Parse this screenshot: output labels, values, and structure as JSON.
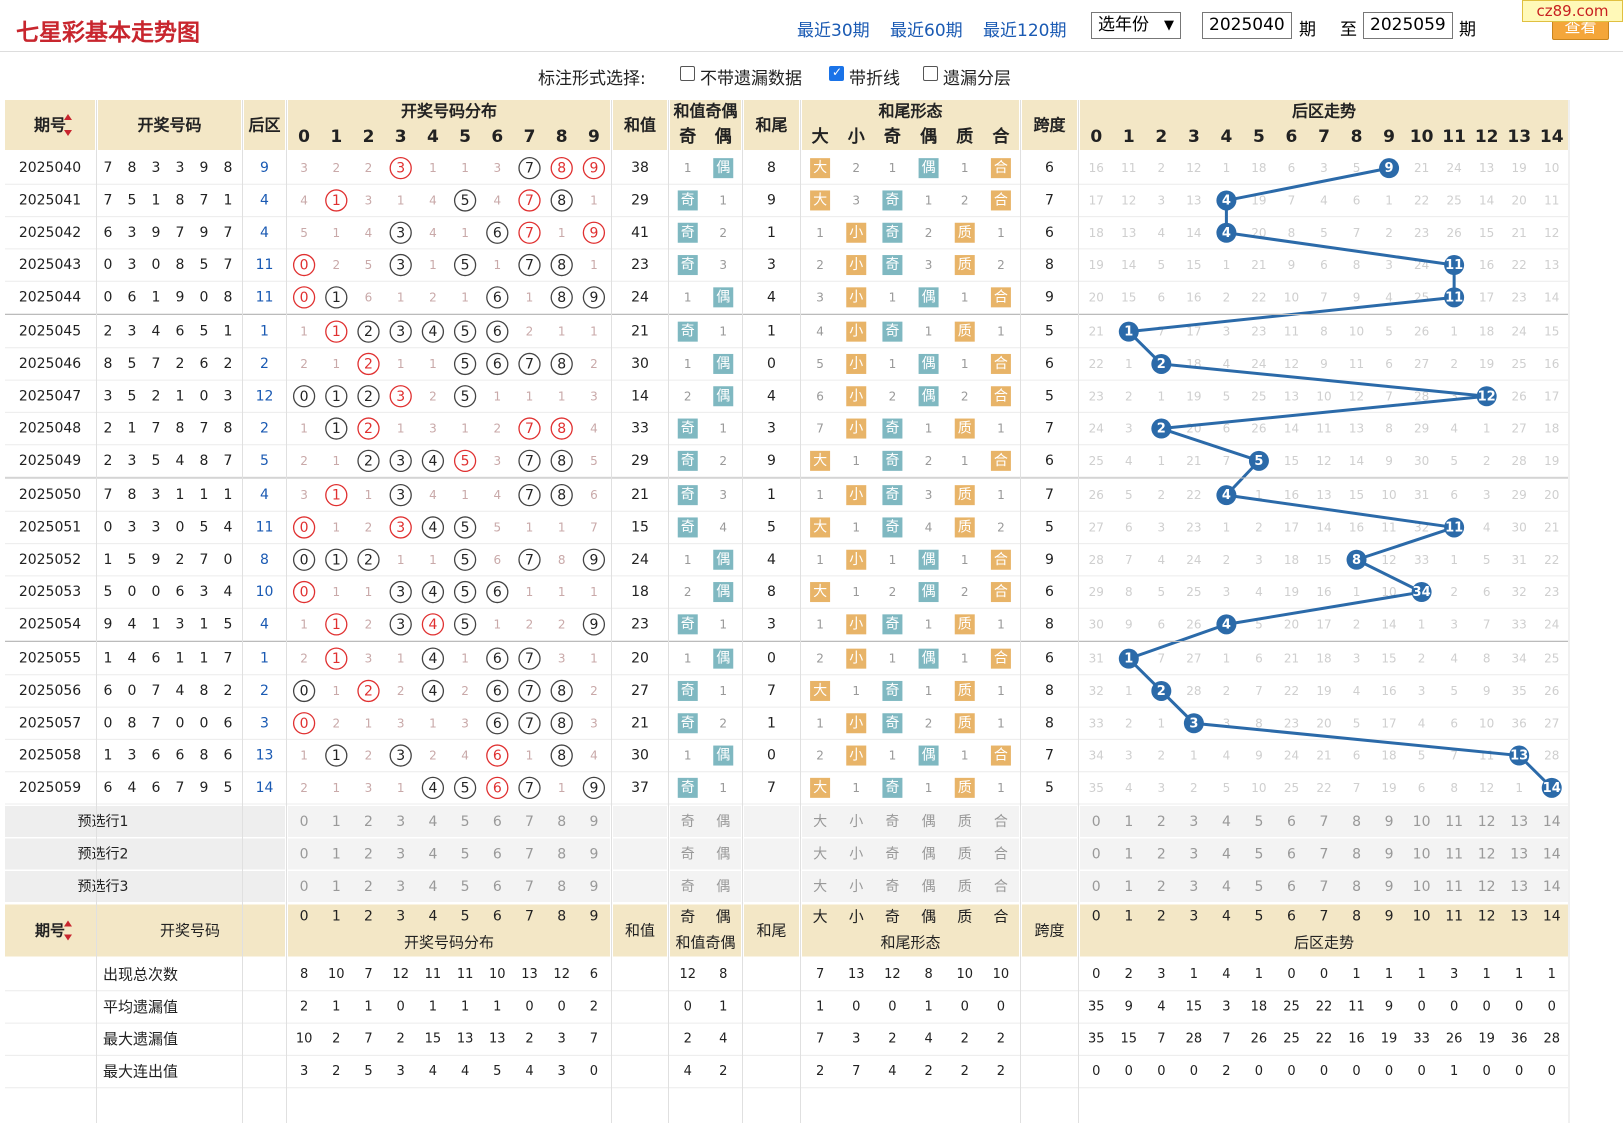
{
  "header": {
    "title": "七星彩基本走势图",
    "nav": [
      "最近30期",
      "最近60期",
      "最近120期"
    ],
    "year_select": "选年份",
    "period_from": "2025040",
    "period_label": "期",
    "to_label": "至",
    "period_to": "2025059",
    "period_label2": "期",
    "query_btn": "查看",
    "watermark": "cz89.com"
  },
  "options": {
    "label": "标注形式选择:",
    "items": [
      {
        "label": "不带遗漏数据",
        "checked": false
      },
      {
        "label": "带折线",
        "checked": true
      },
      {
        "label": "遗漏分层",
        "checked": false
      }
    ]
  },
  "table_headers": {
    "period": "期号",
    "numbers": "开奖号码",
    "back": "后区",
    "dist": "开奖号码分布",
    "sum": "和值",
    "sum_parity": "和值奇偶",
    "tail": "和尾",
    "tail_form": "和尾形态",
    "span": "跨度",
    "back_trend": "后区走势",
    "odd": "奇",
    "even": "偶",
    "form_labels": [
      "大",
      "小",
      "奇",
      "偶",
      "质",
      "合"
    ]
  },
  "rows": [
    {
      "period": "2025040",
      "nums": [
        7,
        8,
        3,
        3,
        9,
        8
      ],
      "back": 9,
      "dist": [
        "3",
        "2",
        "2",
        "3*",
        "1",
        "1",
        "3",
        "7",
        "8*",
        "9*"
      ],
      "sum": 38,
      "parity": [
        "1",
        "偶"
      ],
      "tail": 8,
      "form": [
        "大",
        "2",
        "1",
        "偶",
        "1",
        "合"
      ],
      "span": 6,
      "trend": [
        "16",
        "11",
        "2",
        "12",
        "1",
        "18",
        "6",
        "3",
        "5",
        "9",
        "21",
        "24",
        "13",
        "19",
        "10"
      ]
    },
    {
      "period": "2025041",
      "nums": [
        7,
        5,
        1,
        8,
        7,
        1
      ],
      "back": 4,
      "dist": [
        "4",
        "1*",
        "3",
        "1",
        "4",
        "5",
        "4",
        "7*",
        "8",
        "1"
      ],
      "sum": 29,
      "parity": [
        "奇",
        "1"
      ],
      "tail": 9,
      "form": [
        "大",
        "3",
        "奇",
        "1",
        "2",
        "合"
      ],
      "span": 7,
      "trend": [
        "17",
        "12",
        "3",
        "13",
        "4",
        "19",
        "7",
        "4",
        "6",
        "1",
        "22",
        "25",
        "14",
        "20",
        "11"
      ]
    },
    {
      "period": "2025042",
      "nums": [
        6,
        3,
        9,
        7,
        9,
        7
      ],
      "back": 4,
      "dist": [
        "5",
        "1",
        "4",
        "3",
        "4",
        "1",
        "6",
        "7*",
        "1",
        "9*"
      ],
      "sum": 41,
      "parity": [
        "奇",
        "2"
      ],
      "tail": 1,
      "form": [
        "1",
        "小",
        "奇",
        "2",
        "质",
        "1"
      ],
      "span": 6,
      "trend": [
        "18",
        "13",
        "4",
        "14",
        "4",
        "20",
        "8",
        "5",
        "7",
        "2",
        "23",
        "26",
        "15",
        "21",
        "12"
      ]
    },
    {
      "period": "2025043",
      "nums": [
        0,
        3,
        0,
        8,
        5,
        7
      ],
      "back": 11,
      "dist": [
        "0*",
        "2",
        "5",
        "3",
        "1",
        "5",
        "1",
        "7",
        "8",
        "1"
      ],
      "sum": 23,
      "parity": [
        "奇",
        "3"
      ],
      "tail": 3,
      "form": [
        "2",
        "小",
        "奇",
        "3",
        "质",
        "2"
      ],
      "span": 8,
      "trend": [
        "19",
        "14",
        "5",
        "15",
        "1",
        "21",
        "9",
        "6",
        "8",
        "3",
        "24",
        "11",
        "16",
        "22",
        "13"
      ]
    },
    {
      "period": "2025044",
      "nums": [
        0,
        6,
        1,
        9,
        0,
        8
      ],
      "back": 11,
      "dist": [
        "0*",
        "1",
        "6",
        "1",
        "2",
        "1",
        "6",
        "1",
        "8",
        "9"
      ],
      "sum": 24,
      "parity": [
        "1",
        "偶"
      ],
      "tail": 4,
      "form": [
        "3",
        "小",
        "1",
        "偶",
        "1",
        "合"
      ],
      "span": 9,
      "trend": [
        "20",
        "15",
        "6",
        "16",
        "2",
        "22",
        "10",
        "7",
        "9",
        "4",
        "25",
        "11",
        "17",
        "23",
        "14"
      ]
    },
    {
      "period": "2025045",
      "nums": [
        2,
        3,
        4,
        6,
        5,
        1
      ],
      "back": 1,
      "dist": [
        "1",
        "1*",
        "2",
        "3",
        "4",
        "5",
        "6",
        "2",
        "1",
        "1"
      ],
      "sum": 21,
      "parity": [
        "奇",
        "1"
      ],
      "tail": 1,
      "form": [
        "4",
        "小",
        "奇",
        "1",
        "质",
        "1"
      ],
      "span": 5,
      "trend": [
        "21",
        "1",
        "7",
        "17",
        "3",
        "23",
        "11",
        "8",
        "10",
        "5",
        "26",
        "1",
        "18",
        "24",
        "15"
      ]
    },
    {
      "period": "2025046",
      "nums": [
        8,
        5,
        7,
        2,
        6,
        2
      ],
      "back": 2,
      "dist": [
        "2",
        "1",
        "2*",
        "1",
        "1",
        "5",
        "6",
        "7",
        "8",
        "2"
      ],
      "sum": 30,
      "parity": [
        "1",
        "偶"
      ],
      "tail": 0,
      "form": [
        "5",
        "小",
        "1",
        "偶",
        "1",
        "合"
      ],
      "span": 6,
      "trend": [
        "22",
        "1",
        "2",
        "18",
        "4",
        "24",
        "12",
        "9",
        "11",
        "6",
        "27",
        "2",
        "19",
        "25",
        "16"
      ]
    },
    {
      "period": "2025047",
      "nums": [
        3,
        5,
        2,
        1,
        0,
        3
      ],
      "back": 12,
      "dist": [
        "0",
        "1",
        "2",
        "3*",
        "2",
        "5",
        "1",
        "1",
        "1",
        "3"
      ],
      "sum": 14,
      "parity": [
        "2",
        "偶"
      ],
      "tail": 4,
      "form": [
        "6",
        "小",
        "2",
        "偶",
        "2",
        "合"
      ],
      "span": 5,
      "trend": [
        "23",
        "2",
        "1",
        "19",
        "5",
        "25",
        "13",
        "10",
        "12",
        "7",
        "28",
        "3",
        "12",
        "26",
        "17"
      ]
    },
    {
      "period": "2025048",
      "nums": [
        2,
        1,
        7,
        8,
        7,
        8
      ],
      "back": 2,
      "dist": [
        "1",
        "1",
        "2*",
        "1",
        "3",
        "1",
        "2",
        "7*",
        "8*",
        "4"
      ],
      "sum": 33,
      "parity": [
        "奇",
        "1"
      ],
      "tail": 3,
      "form": [
        "7",
        "小",
        "奇",
        "1",
        "质",
        "1"
      ],
      "span": 7,
      "trend": [
        "24",
        "3",
        "2",
        "20",
        "6",
        "26",
        "14",
        "11",
        "13",
        "8",
        "29",
        "4",
        "1",
        "27",
        "18"
      ]
    },
    {
      "period": "2025049",
      "nums": [
        2,
        3,
        5,
        4,
        8,
        7
      ],
      "back": 5,
      "dist": [
        "2",
        "1",
        "2",
        "3",
        "4",
        "5*",
        "3",
        "7",
        "8",
        "5"
      ],
      "sum": 29,
      "parity": [
        "奇",
        "2"
      ],
      "tail": 9,
      "form": [
        "大",
        "1",
        "奇",
        "2",
        "1",
        "合"
      ],
      "span": 6,
      "trend": [
        "25",
        "4",
        "1",
        "21",
        "7",
        "5",
        "15",
        "12",
        "14",
        "9",
        "30",
        "5",
        "2",
        "28",
        "19"
      ]
    },
    {
      "period": "2025050",
      "nums": [
        7,
        8,
        3,
        1,
        1,
        1
      ],
      "back": 4,
      "dist": [
        "3",
        "1*",
        "1",
        "3",
        "4",
        "1",
        "4",
        "7",
        "8",
        "6"
      ],
      "sum": 21,
      "parity": [
        "奇",
        "3"
      ],
      "tail": 1,
      "form": [
        "1",
        "小",
        "奇",
        "3",
        "质",
        "1"
      ],
      "span": 7,
      "trend": [
        "26",
        "5",
        "2",
        "22",
        "4",
        "1",
        "16",
        "13",
        "15",
        "10",
        "31",
        "6",
        "3",
        "29",
        "20"
      ]
    },
    {
      "period": "2025051",
      "nums": [
        0,
        3,
        3,
        0,
        5,
        4
      ],
      "back": 11,
      "dist": [
        "0*",
        "1",
        "2",
        "3*",
        "4",
        "5",
        "5",
        "1",
        "1",
        "7"
      ],
      "sum": 15,
      "parity": [
        "奇",
        "4"
      ],
      "tail": 5,
      "form": [
        "大",
        "1",
        "奇",
        "4",
        "质",
        "2"
      ],
      "span": 5,
      "trend": [
        "27",
        "6",
        "3",
        "23",
        "1",
        "2",
        "17",
        "14",
        "16",
        "11",
        "32",
        "11",
        "4",
        "30",
        "21"
      ]
    },
    {
      "period": "2025052",
      "nums": [
        1,
        5,
        9,
        2,
        7,
        0
      ],
      "back": 8,
      "dist": [
        "0",
        "1",
        "2",
        "1",
        "1",
        "5",
        "6",
        "7",
        "8",
        "9"
      ],
      "sum": 24,
      "parity": [
        "1",
        "偶"
      ],
      "tail": 4,
      "form": [
        "1",
        "小",
        "1",
        "偶",
        "1",
        "合"
      ],
      "span": 9,
      "trend": [
        "28",
        "7",
        "4",
        "24",
        "2",
        "3",
        "18",
        "15",
        "8",
        "12",
        "33",
        "1",
        "5",
        "31",
        "22"
      ]
    },
    {
      "period": "2025053",
      "nums": [
        5,
        0,
        0,
        6,
        3,
        4
      ],
      "back": 10,
      "dist": [
        "0*",
        "1",
        "1",
        "3",
        "4",
        "5",
        "6",
        "1",
        "1",
        "1"
      ],
      "sum": 18,
      "parity": [
        "2",
        "偶"
      ],
      "tail": 8,
      "form": [
        "大",
        "1",
        "2",
        "偶",
        "2",
        "合"
      ],
      "span": 6,
      "trend": [
        "29",
        "8",
        "5",
        "25",
        "3",
        "4",
        "19",
        "16",
        "1",
        "10",
        "34",
        "2",
        "6",
        "32",
        "23"
      ]
    },
    {
      "period": "2025054",
      "nums": [
        9,
        4,
        1,
        3,
        1,
        5
      ],
      "back": 4,
      "dist": [
        "1",
        "1*",
        "2",
        "3",
        "4*",
        "5",
        "1",
        "2",
        "2",
        "9"
      ],
      "sum": 23,
      "parity": [
        "奇",
        "1"
      ],
      "tail": 3,
      "form": [
        "1",
        "小",
        "奇",
        "1",
        "质",
        "1"
      ],
      "span": 8,
      "trend": [
        "30",
        "9",
        "6",
        "26",
        "4",
        "5",
        "20",
        "17",
        "2",
        "14",
        "1",
        "3",
        "7",
        "33",
        "24"
      ]
    },
    {
      "period": "2025055",
      "nums": [
        1,
        4,
        6,
        1,
        1,
        7
      ],
      "back": 1,
      "dist": [
        "2",
        "1*",
        "3",
        "1",
        "4",
        "1",
        "6",
        "7",
        "3",
        "1"
      ],
      "sum": 20,
      "parity": [
        "1",
        "偶"
      ],
      "tail": 0,
      "form": [
        "2",
        "小",
        "1",
        "偶",
        "1",
        "合"
      ],
      "span": 6,
      "trend": [
        "31",
        "1",
        "7",
        "27",
        "1",
        "6",
        "21",
        "18",
        "3",
        "15",
        "2",
        "4",
        "8",
        "34",
        "25"
      ]
    },
    {
      "period": "2025056",
      "nums": [
        6,
        0,
        7,
        4,
        8,
        2
      ],
      "back": 2,
      "dist": [
        "0",
        "1",
        "2*",
        "2",
        "4",
        "2",
        "6",
        "7",
        "8",
        "2"
      ],
      "sum": 27,
      "parity": [
        "奇",
        "1"
      ],
      "tail": 7,
      "form": [
        "大",
        "1",
        "奇",
        "1",
        "质",
        "1"
      ],
      "span": 8,
      "trend": [
        "32",
        "1",
        "2",
        "28",
        "2",
        "7",
        "22",
        "19",
        "4",
        "16",
        "3",
        "5",
        "9",
        "35",
        "26"
      ]
    },
    {
      "period": "2025057",
      "nums": [
        0,
        8,
        7,
        0,
        0,
        6
      ],
      "back": 3,
      "dist": [
        "0*",
        "2",
        "1",
        "3",
        "1",
        "3",
        "6",
        "7",
        "8",
        "3"
      ],
      "sum": 21,
      "parity": [
        "奇",
        "2"
      ],
      "tail": 1,
      "form": [
        "1",
        "小",
        "奇",
        "2",
        "质",
        "1"
      ],
      "span": 8,
      "trend": [
        "33",
        "2",
        "1",
        "3",
        "3",
        "8",
        "23",
        "20",
        "5",
        "17",
        "4",
        "6",
        "10",
        "36",
        "27"
      ]
    },
    {
      "period": "2025058",
      "nums": [
        1,
        3,
        6,
        6,
        8,
        6
      ],
      "back": 13,
      "dist": [
        "1",
        "1",
        "2",
        "3",
        "2",
        "4",
        "6*",
        "1",
        "8",
        "4"
      ],
      "sum": 30,
      "parity": [
        "1",
        "偶"
      ],
      "tail": 0,
      "form": [
        "2",
        "小",
        "1",
        "偶",
        "1",
        "合"
      ],
      "span": 7,
      "trend": [
        "34",
        "3",
        "2",
        "1",
        "4",
        "9",
        "24",
        "21",
        "6",
        "18",
        "5",
        "7",
        "11",
        "13",
        "28"
      ]
    },
    {
      "period": "2025059",
      "nums": [
        6,
        4,
        6,
        7,
        9,
        5
      ],
      "back": 14,
      "dist": [
        "2",
        "1",
        "3",
        "1",
        "4",
        "5",
        "6*",
        "7",
        "1",
        "9"
      ],
      "sum": 37,
      "parity": [
        "奇",
        "1"
      ],
      "tail": 7,
      "form": [
        "大",
        "1",
        "奇",
        "1",
        "质",
        "1"
      ],
      "span": 5,
      "trend": [
        "35",
        "4",
        "3",
        "2",
        "5",
        "10",
        "25",
        "22",
        "7",
        "19",
        "6",
        "8",
        "12",
        "1",
        "14"
      ]
    }
  ],
  "preselect": [
    "预选行1",
    "预选行2",
    "预选行3"
  ],
  "stats": [
    {
      "label": "出现总次数",
      "dist": [
        8,
        10,
        7,
        12,
        11,
        11,
        10,
        13,
        12,
        6
      ],
      "parity": [
        12,
        8
      ],
      "form": [
        7,
        13,
        12,
        8,
        10,
        10
      ],
      "trend": [
        0,
        2,
        3,
        1,
        4,
        1,
        0,
        0,
        1,
        1,
        1,
        3,
        1,
        1,
        1
      ]
    },
    {
      "label": "平均遗漏值",
      "dist": [
        2,
        1,
        1,
        0,
        1,
        1,
        1,
        0,
        0,
        2
      ],
      "parity": [
        0,
        1
      ],
      "form": [
        1,
        0,
        0,
        1,
        0,
        0
      ],
      "trend": [
        35,
        9,
        4,
        15,
        3,
        18,
        25,
        22,
        11,
        9,
        0,
        0,
        0,
        0,
        0
      ]
    },
    {
      "label": "最大遗漏值",
      "dist": [
        10,
        2,
        7,
        2,
        15,
        13,
        13,
        2,
        3,
        7
      ],
      "parity": [
        2,
        4
      ],
      "form": [
        7,
        3,
        2,
        4,
        2,
        2
      ],
      "trend": [
        35,
        15,
        7,
        28,
        7,
        26,
        25,
        22,
        16,
        19,
        33,
        26,
        19,
        36,
        28
      ]
    },
    {
      "label": "最大连出值",
      "dist": [
        3,
        2,
        5,
        3,
        4,
        4,
        5,
        4,
        3,
        0
      ],
      "parity": [
        4,
        2
      ],
      "form": [
        2,
        7,
        4,
        2,
        2,
        2
      ],
      "trend": [
        0,
        0,
        0,
        0,
        2,
        0,
        0,
        0,
        0,
        0,
        0,
        1,
        0,
        0,
        0
      ]
    }
  ],
  "colors": {
    "header_bg": "#f3e7c6",
    "title": "#c8262e",
    "link": "#1a5ab3",
    "ball": "#2b6aa9",
    "red": "#e03030",
    "tag_orange": "#e8b468",
    "tag_teal": "#7fb8c1"
  }
}
